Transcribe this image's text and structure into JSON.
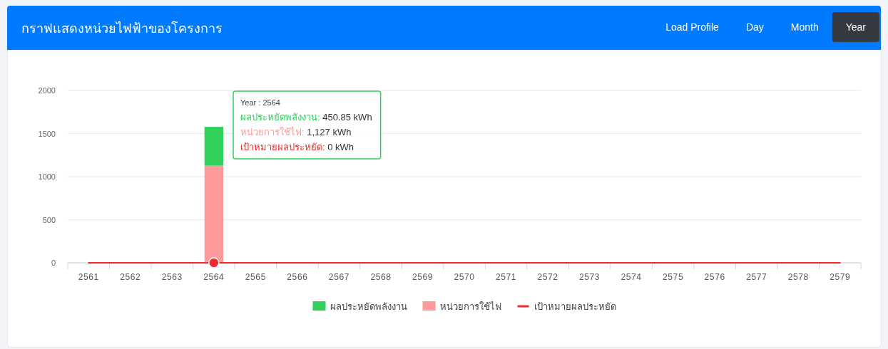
{
  "chart_data": {
    "type": "bar",
    "title": "กราฟแสดงหน่วยไฟฟ้าของโครงการ",
    "categories": [
      "2561",
      "2562",
      "2563",
      "2564",
      "2565",
      "2566",
      "2567",
      "2568",
      "2569",
      "2570",
      "2571",
      "2572",
      "2573",
      "2574",
      "2575",
      "2576",
      "2577",
      "2578",
      "2579"
    ],
    "stacked": true,
    "series": [
      {
        "name": "หน่วยการใช้ไฟ",
        "color": "#ff9a9a",
        "values": [
          null,
          null,
          null,
          1127,
          null,
          null,
          null,
          null,
          null,
          null,
          null,
          null,
          null,
          null,
          null,
          null,
          null,
          null,
          null
        ]
      },
      {
        "name": "ผลประหยัดพลังงาน",
        "color": "#2fd15a",
        "values": [
          null,
          null,
          null,
          450.85,
          null,
          null,
          null,
          null,
          null,
          null,
          null,
          null,
          null,
          null,
          null,
          null,
          null,
          null,
          null
        ]
      },
      {
        "name": "เป้าหมายผลประหยัด",
        "type": "line",
        "color": "#ef2b2d",
        "values": [
          0,
          0,
          0,
          0,
          0,
          0,
          0,
          0,
          0,
          0,
          0,
          0,
          0,
          0,
          0,
          0,
          0,
          0,
          0
        ]
      },
      {
        "type": "scatter",
        "color": "#ef2b2d",
        "marker": "circle",
        "values": [
          null,
          null,
          null,
          0,
          null,
          null,
          null,
          null,
          null,
          null,
          null,
          null,
          null,
          null,
          null,
          null,
          null,
          null,
          null
        ]
      }
    ],
    "ylim": [
      0,
      2000
    ],
    "yticks": [
      0,
      500,
      1000,
      1500,
      2000
    ],
    "grid": "y",
    "legend": "bottom",
    "annotations": [
      "Load Profile",
      "Day",
      "Month",
      "Year",
      "Year : 2564",
      "ผลประหยัดพลังงาน: 450.85 kWh",
      "หน่วยการใช้ไฟ: 1,127 kWh",
      "เป้าหมายผลประหยัด: 0 kWh"
    ]
  }
}
